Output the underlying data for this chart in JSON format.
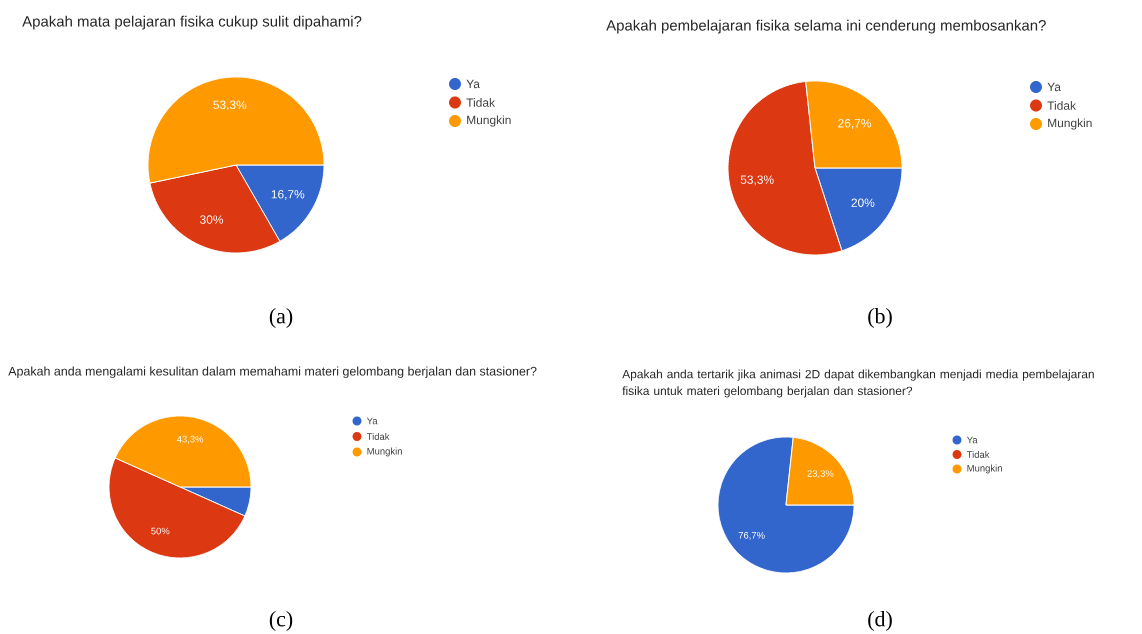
{
  "chart_data": [
    {
      "type": "pie",
      "title": "Apakah mata pelajaran fisika cukup sulit dipahami?",
      "categories": [
        "Ya",
        "Tidak",
        "Mungkin"
      ],
      "values": [
        16.7,
        30,
        53.3
      ],
      "colors": [
        "#3366cc",
        "#dc3912",
        "#ff9900"
      ],
      "value_labels": [
        "16,7%",
        "30%",
        "53,3%"
      ],
      "legend": "right",
      "annotations": [
        "(a)"
      ]
    },
    {
      "type": "pie",
      "title": "Apakah pembelajaran fisika selama ini cenderung membosankan?",
      "categories": [
        "Ya",
        "Tidak",
        "Mungkin"
      ],
      "values": [
        20,
        53.3,
        26.7
      ],
      "colors": [
        "#3366cc",
        "#dc3912",
        "#ff9900"
      ],
      "value_labels": [
        "20%",
        "53,3%",
        "26,7%"
      ],
      "legend": "right",
      "annotations": [
        "(b)"
      ]
    },
    {
      "type": "pie",
      "title": "Apakah anda mengalami kesulitan dalam memahami materi gelombang berjalan dan stasioner?",
      "categories": [
        "Ya",
        "Tidak",
        "Mungkin"
      ],
      "values": [
        6.7,
        50,
        43.3
      ],
      "colors": [
        "#3366cc",
        "#dc3912",
        "#ff9900"
      ],
      "value_labels": [
        null,
        "50%",
        "43,3%"
      ],
      "legend": "right",
      "annotations": [
        "(c)"
      ]
    },
    {
      "type": "pie",
      "title": "Apakah anda tertarik jika animasi 2D dapat dikembangkan menjadi media pembelajaran fisika untuk materi gelombang berjalan dan stasioner?",
      "categories": [
        "Ya",
        "Tidak",
        "Mungkin"
      ],
      "values": [
        76.7,
        0,
        23.3
      ],
      "colors": [
        "#3366cc",
        "#dc3912",
        "#ff9900"
      ],
      "value_labels": [
        "76,7%",
        null,
        "23,3%"
      ],
      "legend": "right",
      "annotations": [
        "(d)"
      ]
    }
  ]
}
